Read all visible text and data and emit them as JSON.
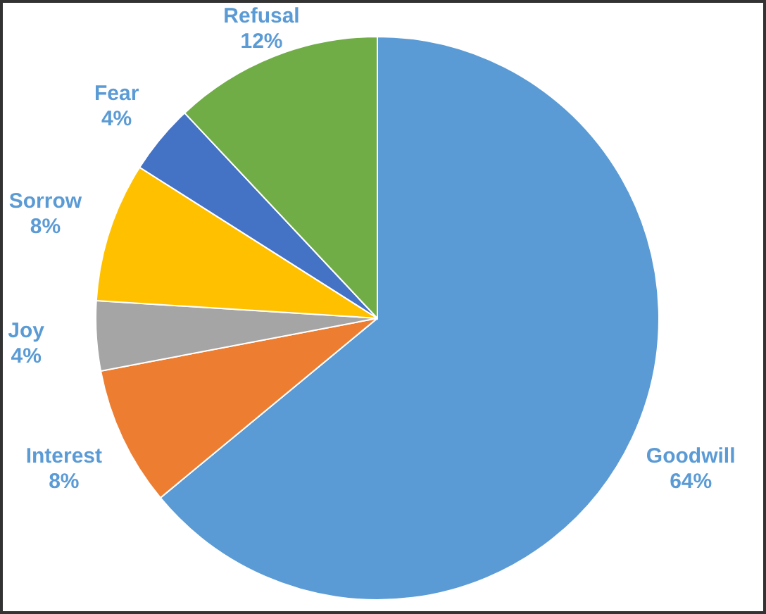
{
  "chart_data": {
    "type": "pie",
    "categories": [
      "Goodwill",
      "Interest",
      "Joy",
      "Sorrow",
      "Fear",
      "Refusal"
    ],
    "values": [
      64,
      8,
      4,
      8,
      4,
      12
    ],
    "value_labels": [
      "64%",
      "8%",
      "4%",
      "8%",
      "4%",
      "12%"
    ],
    "colors": [
      "#5b9bd5",
      "#ed7d31",
      "#a5a5a5",
      "#ffc000",
      "#4472c4",
      "#70ad47"
    ]
  }
}
